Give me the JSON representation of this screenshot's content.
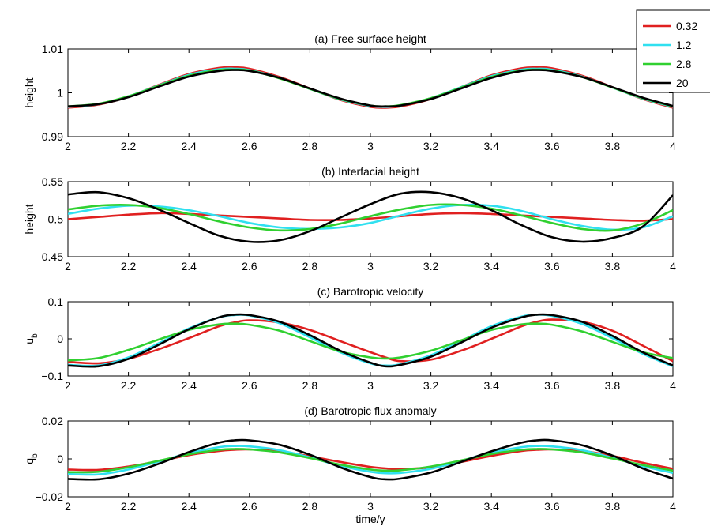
{
  "chart_data": [
    {
      "type": "line",
      "title": "(a) Free surface height",
      "xlabel": "",
      "ylabel": "height",
      "xlim": [
        2,
        4
      ],
      "ylim": [
        0.99,
        1.01
      ],
      "x_ticks": [
        "2",
        "2.2",
        "2.4",
        "2.6",
        "2.8",
        "3",
        "3.2",
        "3.4",
        "3.6",
        "3.8",
        "4"
      ],
      "y_ticks": [
        "0.99",
        "1",
        "1.01"
      ],
      "x": [
        2.0,
        2.1,
        2.2,
        2.3,
        2.4,
        2.5,
        2.55,
        2.6,
        2.7,
        2.8,
        2.9,
        3.0,
        3.05,
        3.1,
        3.2,
        3.3,
        3.4,
        3.5,
        3.55,
        3.6,
        3.7,
        3.8,
        3.9,
        4.0
      ],
      "series": [
        {
          "name": "0.32",
          "color": "#e02020",
          "values": [
            0.9966,
            0.9973,
            0.9991,
            1.0018,
            1.0043,
            1.0057,
            1.0058,
            1.0055,
            1.0036,
            1.001,
            0.9984,
            0.9968,
            0.9966,
            0.9969,
            0.9986,
            1.0013,
            1.004,
            1.0056,
            1.0058,
            1.0056,
            1.0039,
            1.0013,
            0.9986,
            0.9966
          ]
        },
        {
          "name": "1.2",
          "color": "#30e0f0",
          "values": [
            0.9968,
            0.9974,
            0.9992,
            1.0017,
            1.0041,
            1.0054,
            1.0055,
            1.0052,
            1.0034,
            1.0009,
            0.9985,
            0.997,
            0.9968,
            0.9971,
            0.9988,
            1.0013,
            1.0038,
            1.0053,
            1.0055,
            1.0053,
            1.0037,
            1.0012,
            0.9987,
            0.9968
          ]
        },
        {
          "name": "2.8",
          "color": "#30d030",
          "values": [
            0.9969,
            0.9975,
            0.9992,
            1.0016,
            1.0039,
            1.0052,
            1.0053,
            1.0051,
            1.0033,
            1.0009,
            0.9986,
            0.9971,
            0.9969,
            0.9972,
            0.9988,
            1.0012,
            1.0036,
            1.0051,
            1.0053,
            1.0051,
            1.0036,
            1.0012,
            0.9988,
            0.9969
          ]
        },
        {
          "name": "20",
          "color": "#000000",
          "values": [
            0.9969,
            0.9974,
            0.999,
            1.0014,
            1.0037,
            1.005,
            1.0052,
            1.005,
            1.0034,
            1.001,
            0.9987,
            0.9971,
            0.9969,
            0.9971,
            0.9986,
            1.001,
            1.0034,
            1.005,
            1.0052,
            1.005,
            1.0036,
            1.0013,
            0.9989,
            0.997
          ]
        }
      ]
    },
    {
      "type": "line",
      "title": "(b) Interfacial height",
      "xlabel": "",
      "ylabel": "height",
      "xlim": [
        2,
        4
      ],
      "ylim": [
        0.45,
        0.55
      ],
      "x_ticks": [
        "2",
        "2.2",
        "2.4",
        "2.6",
        "2.8",
        "3",
        "3.2",
        "3.4",
        "3.6",
        "3.8",
        "4"
      ],
      "y_ticks": [
        "0.45",
        "0.5",
        "0.55"
      ],
      "x": [
        2.0,
        2.1,
        2.2,
        2.3,
        2.4,
        2.5,
        2.6,
        2.7,
        2.8,
        2.9,
        3.0,
        3.1,
        3.2,
        3.3,
        3.4,
        3.5,
        3.6,
        3.7,
        3.8,
        3.9,
        4.0
      ],
      "series": [
        {
          "name": "0.32",
          "color": "#e02020",
          "values": [
            0.5,
            0.503,
            0.506,
            0.508,
            0.507,
            0.505,
            0.503,
            0.501,
            0.499,
            0.499,
            0.501,
            0.504,
            0.507,
            0.508,
            0.507,
            0.505,
            0.503,
            0.501,
            0.499,
            0.498,
            0.5
          ]
        },
        {
          "name": "1.2",
          "color": "#30e0f0",
          "values": [
            0.507,
            0.514,
            0.518,
            0.517,
            0.512,
            0.504,
            0.495,
            0.489,
            0.487,
            0.489,
            0.495,
            0.505,
            0.514,
            0.519,
            0.518,
            0.511,
            0.5,
            0.491,
            0.486,
            0.489,
            0.504
          ]
        },
        {
          "name": "2.8",
          "color": "#30d030",
          "values": [
            0.513,
            0.518,
            0.519,
            0.515,
            0.507,
            0.497,
            0.489,
            0.485,
            0.487,
            0.494,
            0.504,
            0.513,
            0.519,
            0.519,
            0.514,
            0.505,
            0.495,
            0.487,
            0.485,
            0.494,
            0.512
          ]
        },
        {
          "name": "20",
          "color": "#000000",
          "values": [
            0.533,
            0.536,
            0.528,
            0.513,
            0.495,
            0.478,
            0.47,
            0.472,
            0.484,
            0.502,
            0.52,
            0.534,
            0.536,
            0.528,
            0.512,
            0.492,
            0.476,
            0.47,
            0.475,
            0.49,
            0.532
          ]
        }
      ]
    },
    {
      "type": "line",
      "title": "(c) Barotropic velocity",
      "xlabel": "",
      "ylabel": "u_b",
      "xlim": [
        2,
        4
      ],
      "ylim": [
        -0.1,
        0.1
      ],
      "x_ticks": [
        "2",
        "2.2",
        "2.4",
        "2.6",
        "2.8",
        "3",
        "3.2",
        "3.4",
        "3.6",
        "3.8",
        "4"
      ],
      "y_ticks": [
        "−0.1",
        "0",
        "0.1"
      ],
      "x": [
        2.0,
        2.1,
        2.2,
        2.3,
        2.4,
        2.5,
        2.55,
        2.6,
        2.7,
        2.8,
        2.9,
        3.0,
        3.05,
        3.1,
        3.2,
        3.3,
        3.4,
        3.5,
        3.55,
        3.6,
        3.7,
        3.8,
        3.9,
        4.0
      ],
      "series": [
        {
          "name": "0.32",
          "color": "#e02020",
          "values": [
            -0.062,
            -0.066,
            -0.054,
            -0.028,
            0.002,
            0.034,
            0.044,
            0.05,
            0.044,
            0.024,
            -0.006,
            -0.036,
            -0.05,
            -0.06,
            -0.056,
            -0.032,
            0.0,
            0.034,
            0.046,
            0.052,
            0.046,
            0.022,
            -0.018,
            -0.06
          ]
        },
        {
          "name": "1.2",
          "color": "#30e0f0",
          "values": [
            -0.07,
            -0.072,
            -0.05,
            -0.012,
            0.028,
            0.058,
            0.064,
            0.063,
            0.042,
            0.004,
            -0.036,
            -0.066,
            -0.072,
            -0.068,
            -0.044,
            -0.006,
            0.034,
            0.06,
            0.065,
            0.062,
            0.04,
            0.002,
            -0.04,
            -0.074
          ]
        },
        {
          "name": "2.8",
          "color": "#30d030",
          "values": [
            -0.058,
            -0.052,
            -0.03,
            -0.002,
            0.024,
            0.039,
            0.041,
            0.038,
            0.022,
            -0.006,
            -0.034,
            -0.05,
            -0.053,
            -0.05,
            -0.032,
            -0.004,
            0.024,
            0.039,
            0.041,
            0.038,
            0.02,
            -0.008,
            -0.036,
            -0.052
          ]
        },
        {
          "name": "20",
          "color": "#000000",
          "values": [
            -0.072,
            -0.074,
            -0.054,
            -0.016,
            0.026,
            0.058,
            0.065,
            0.064,
            0.046,
            0.01,
            -0.032,
            -0.064,
            -0.074,
            -0.07,
            -0.048,
            -0.01,
            0.03,
            0.058,
            0.065,
            0.064,
            0.046,
            0.008,
            -0.036,
            -0.072
          ]
        }
      ]
    },
    {
      "type": "line",
      "title": "(d) Barotropic flux anomaly",
      "xlabel": "time/γ",
      "ylabel": "q_b",
      "xlim": [
        2,
        4
      ],
      "ylim": [
        -0.02,
        0.02
      ],
      "x_ticks": [
        "2",
        "2.2",
        "2.4",
        "2.6",
        "2.8",
        "3",
        "3.2",
        "3.4",
        "3.6",
        "3.8",
        "4"
      ],
      "y_ticks": [
        "−0.02",
        "0",
        "0.02"
      ],
      "x": [
        2.0,
        2.1,
        2.2,
        2.3,
        2.4,
        2.5,
        2.55,
        2.6,
        2.7,
        2.8,
        2.9,
        3.0,
        3.05,
        3.1,
        3.2,
        3.3,
        3.4,
        3.5,
        3.55,
        3.6,
        3.7,
        3.8,
        3.9,
        4.0
      ],
      "series": [
        {
          "name": "0.32",
          "color": "#e02020",
          "values": [
            -0.0056,
            -0.0058,
            -0.004,
            -0.0012,
            0.002,
            0.0042,
            0.0048,
            0.005,
            0.004,
            0.0014,
            -0.0016,
            -0.0042,
            -0.005,
            -0.0054,
            -0.0044,
            -0.0016,
            0.0016,
            0.0042,
            0.0048,
            0.005,
            0.0042,
            0.0016,
            -0.002,
            -0.0052
          ]
        },
        {
          "name": "1.2",
          "color": "#30e0f0",
          "values": [
            -0.008,
            -0.0082,
            -0.0056,
            -0.0014,
            0.003,
            0.0062,
            0.0068,
            0.0066,
            0.0046,
            0.0008,
            -0.0036,
            -0.0068,
            -0.0076,
            -0.0074,
            -0.0052,
            -0.001,
            0.0034,
            0.0062,
            0.0068,
            0.0066,
            0.0046,
            0.0006,
            -0.0038,
            -0.0074
          ]
        },
        {
          "name": "2.8",
          "color": "#30d030",
          "values": [
            -0.007,
            -0.0068,
            -0.0044,
            -0.001,
            0.0024,
            0.0048,
            0.0052,
            0.005,
            0.0034,
            0.0004,
            -0.003,
            -0.0056,
            -0.0062,
            -0.006,
            -0.004,
            -0.0008,
            0.0026,
            0.0048,
            0.0052,
            0.005,
            0.0034,
            0.0002,
            -0.0032,
            -0.0062
          ]
        },
        {
          "name": "20",
          "color": "#000000",
          "values": [
            -0.0106,
            -0.0108,
            -0.0078,
            -0.0026,
            0.0036,
            0.0086,
            0.0098,
            0.0098,
            0.0074,
            0.0022,
            -0.0044,
            -0.0096,
            -0.0108,
            -0.0104,
            -0.0072,
            -0.0016,
            0.004,
            0.0086,
            0.0098,
            0.0098,
            0.0072,
            0.0018,
            -0.005,
            -0.0104
          ]
        }
      ]
    }
  ],
  "legend": {
    "placement": "top-right",
    "entries": [
      {
        "label": "0.32",
        "color": "#e02020"
      },
      {
        "label": "1.2",
        "color": "#30e0f0"
      },
      {
        "label": "2.8",
        "color": "#30d030"
      },
      {
        "label": "20",
        "color": "#000000"
      }
    ]
  }
}
